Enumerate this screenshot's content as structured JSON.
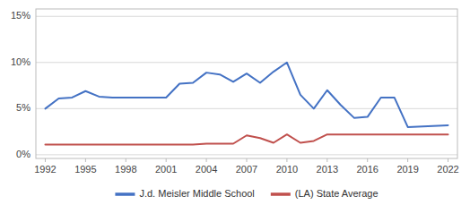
{
  "chart_data": {
    "type": "line",
    "x": [
      1992,
      1993,
      1994,
      1995,
      1996,
      1997,
      1998,
      1999,
      2000,
      2001,
      2002,
      2003,
      2004,
      2005,
      2006,
      2007,
      2008,
      2009,
      2010,
      2011,
      2012,
      2013,
      2014,
      2015,
      2016,
      2017,
      2018,
      2019,
      2022
    ],
    "series": [
      {
        "name": "J.d. Meisler Middle School",
        "color": "#4472c4",
        "values": [
          0.05,
          0.061,
          0.062,
          0.069,
          0.063,
          0.062,
          0.062,
          0.062,
          0.062,
          0.062,
          0.077,
          0.078,
          0.089,
          0.087,
          0.079,
          0.088,
          0.078,
          0.09,
          0.1,
          0.065,
          0.05,
          0.07,
          0.054,
          0.04,
          0.041,
          0.062,
          0.062,
          0.03,
          0.032
        ]
      },
      {
        "name": "(LA) State Average",
        "color": "#c0504d",
        "values": [
          0.011,
          0.011,
          0.011,
          0.011,
          0.011,
          0.011,
          0.011,
          0.011,
          0.011,
          0.011,
          0.011,
          0.011,
          0.012,
          0.012,
          0.012,
          0.021,
          0.018,
          0.013,
          0.022,
          0.013,
          0.015,
          0.022,
          0.022,
          0.022,
          0.022,
          0.022,
          0.022,
          0.022,
          0.022
        ]
      }
    ],
    "xlim": [
      1991.3,
      2022.7
    ],
    "xticks": [
      1992,
      1995,
      1998,
      2001,
      2004,
      2007,
      2010,
      2013,
      2016,
      2019,
      2022
    ],
    "ylim": [
      -0.004,
      0.158
    ],
    "yticks": [
      {
        "value": 0.0,
        "label": "0%"
      },
      {
        "value": 0.05,
        "label": "5%"
      },
      {
        "value": 0.1,
        "label": "10%"
      },
      {
        "value": 0.15,
        "label": "15%"
      }
    ],
    "grid": true,
    "legend": "bottom"
  }
}
